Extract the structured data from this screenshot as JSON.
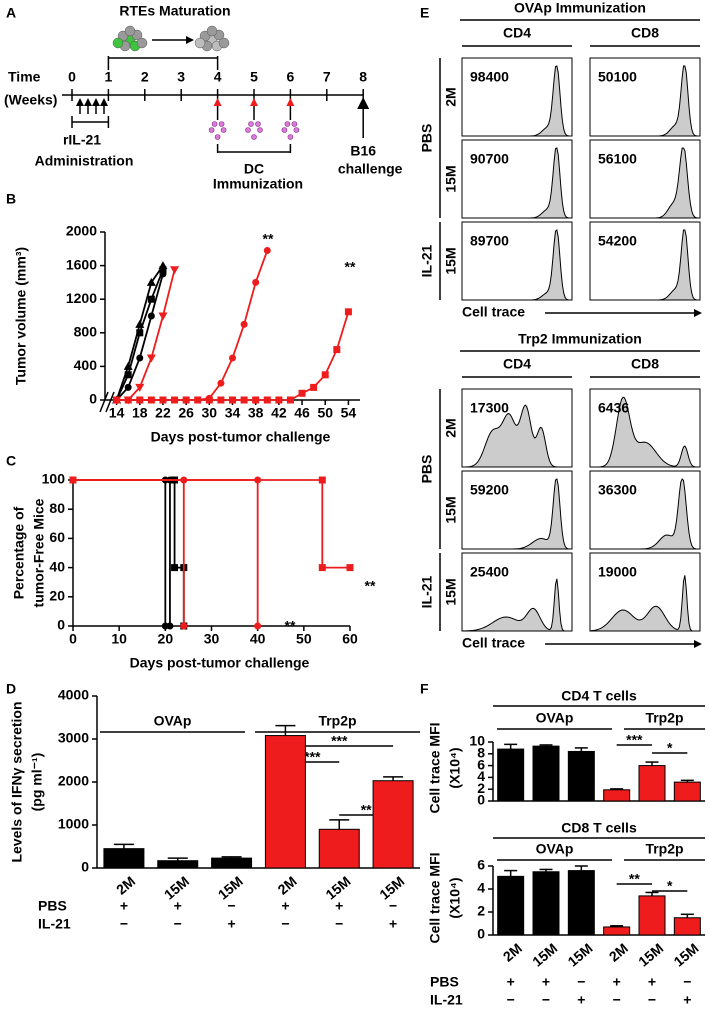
{
  "panel_labels": [
    "A",
    "B",
    "C",
    "D",
    "E",
    "F"
  ],
  "timeline": {
    "title": "RTEs Maturation",
    "axis_label": "Time",
    "axis_unit": "(Weeks)",
    "weeks": [
      0,
      1,
      2,
      3,
      4,
      5,
      6,
      7,
      8
    ],
    "administration": [
      "rIL-21",
      "Administration"
    ],
    "immunization": [
      "DC",
      "Immunization"
    ],
    "challenge": [
      "B16",
      "challenge"
    ]
  },
  "chart_data": [
    {
      "type": "line",
      "ylabel": "Tumor volume (mm³)",
      "xlabel": "Days post-tumor challenge",
      "xlim": [
        12,
        56
      ],
      "xticks": [
        14,
        18,
        22,
        26,
        30,
        34,
        38,
        42,
        46,
        50,
        54
      ],
      "ylim": [
        0,
        2000
      ],
      "yticks": [
        0,
        400,
        800,
        1200,
        1600,
        2000
      ],
      "series": [
        {
          "color": "#000000",
          "marker": "square",
          "x": [
            14,
            16,
            18,
            20,
            22
          ],
          "values": [
            0,
            300,
            800,
            1200,
            1550
          ]
        },
        {
          "color": "#000000",
          "marker": "circle",
          "x": [
            14,
            16,
            18,
            20,
            22
          ],
          "values": [
            0,
            150,
            500,
            1000,
            1500
          ]
        },
        {
          "color": "#000000",
          "marker": "triangle",
          "x": [
            14,
            16,
            18,
            20,
            22
          ],
          "values": [
            0,
            400,
            900,
            1400,
            1600
          ]
        },
        {
          "color": "#ee1c1c",
          "marker": "triangle-down",
          "x": [
            14,
            16,
            18,
            20,
            22,
            24
          ],
          "values": [
            0,
            0,
            150,
            500,
            1000,
            1550
          ]
        },
        {
          "color": "#ee1c1c",
          "marker": "circle",
          "x": [
            14,
            16,
            18,
            20,
            22,
            24,
            26,
            28,
            30,
            32,
            34,
            36,
            38,
            40
          ],
          "values": [
            0,
            0,
            0,
            0,
            0,
            0,
            0,
            0,
            20,
            200,
            500,
            900,
            1400,
            1780
          ]
        },
        {
          "color": "#ee1c1c",
          "marker": "square",
          "x": [
            14,
            16,
            18,
            20,
            22,
            24,
            26,
            28,
            30,
            32,
            34,
            36,
            38,
            40,
            42,
            44,
            46,
            48,
            50,
            52,
            54
          ],
          "values": [
            0,
            0,
            0,
            0,
            0,
            0,
            0,
            0,
            0,
            0,
            0,
            0,
            0,
            0,
            0,
            0,
            80,
            150,
            300,
            600,
            1050
          ]
        }
      ],
      "annotations": [
        "**",
        "**"
      ]
    },
    {
      "type": "line",
      "ylabel": [
        "Percentage of",
        "tumor-Free Mice"
      ],
      "xlabel": "Days post-tumor challenge",
      "xlim": [
        0,
        60
      ],
      "xticks": [
        0,
        10,
        20,
        30,
        40,
        50,
        60
      ],
      "ylim": [
        0,
        100
      ],
      "yticks": [
        0,
        20,
        40,
        60,
        80,
        100
      ],
      "series": [
        {
          "color": "#000000",
          "marker": "circle",
          "x": [
            0,
            20,
            20
          ],
          "values": [
            100,
            100,
            0
          ]
        },
        {
          "color": "#000000",
          "marker": "circle",
          "x": [
            0,
            21,
            21
          ],
          "values": [
            100,
            100,
            0
          ]
        },
        {
          "color": "#000000",
          "marker": "square",
          "x": [
            0,
            22,
            22,
            24,
            24
          ],
          "values": [
            100,
            100,
            40,
            40,
            0
          ]
        },
        {
          "color": "#ee1c1c",
          "marker": "circle",
          "x": [
            0,
            24,
            24
          ],
          "values": [
            100,
            100,
            0
          ]
        },
        {
          "color": "#ee1c1c",
          "marker": "circle",
          "x": [
            0,
            40,
            40
          ],
          "values": [
            100,
            100,
            0
          ]
        },
        {
          "color": "#ee1c1c",
          "marker": "square",
          "x": [
            0,
            54,
            54,
            60
          ],
          "values": [
            100,
            100,
            40,
            40
          ]
        }
      ],
      "annotations": [
        "**",
        "**"
      ]
    },
    {
      "type": "bar",
      "ylabel": [
        "Levels of IFNγ secretion",
        "(pg ml⁻¹)"
      ],
      "ylim": [
        0,
        4000
      ],
      "yticks": [
        0,
        1000,
        2000,
        3000,
        4000
      ],
      "categories": [
        "2M",
        "15M",
        "15M",
        "2M",
        "15M",
        "15M"
      ],
      "values": [
        450,
        170,
        230,
        3080,
        900,
        2030
      ],
      "errors": [
        100,
        60,
        30,
        230,
        220,
        90
      ],
      "colors": [
        "#000000",
        "#000000",
        "#000000",
        "#ee1c1c",
        "#ee1c1c",
        "#ee1c1c"
      ],
      "groups": [
        "OVAp",
        "Trp2p"
      ],
      "significance": [
        "***",
        "***",
        "**"
      ],
      "treatments": [
        {
          "label": "PBS",
          "signs": [
            "+",
            "+",
            "−",
            "+",
            "+",
            "−"
          ]
        },
        {
          "label": "IL-21",
          "signs": [
            "−",
            "−",
            "+",
            "−",
            "−",
            "+"
          ]
        }
      ]
    },
    {
      "type": "bar",
      "title": "CD4 T cells",
      "ylabel": [
        "Cell  trace MFI",
        "(X10⁴)"
      ],
      "ylim": [
        0,
        10
      ],
      "yticks": [
        0,
        2,
        4,
        6,
        8,
        10
      ],
      "values": [
        8.8,
        9.3,
        8.4,
        1.9,
        6.0,
        3.2
      ],
      "errors": [
        0.8,
        0.2,
        0.6,
        0.15,
        0.6,
        0.3
      ],
      "colors": [
        "#000000",
        "#000000",
        "#000000",
        "#ee1c1c",
        "#ee1c1c",
        "#ee1c1c"
      ],
      "groups": [
        "OVAp",
        "Trp2p"
      ],
      "significance": [
        "***",
        "*"
      ]
    },
    {
      "type": "bar",
      "title": "CD8 T cells",
      "ylabel": [
        "Cell trace MFI",
        "(X10⁴)"
      ],
      "ylim": [
        0,
        6
      ],
      "yticks": [
        0,
        2,
        4,
        6
      ],
      "categories": [
        "2M",
        "15M",
        "15M",
        "2M",
        "15M",
        "15M"
      ],
      "values": [
        5.1,
        5.5,
        5.6,
        0.7,
        3.4,
        1.5
      ],
      "errors": [
        0.5,
        0.2,
        0.4,
        0.1,
        0.3,
        0.3
      ],
      "colors": [
        "#000000",
        "#000000",
        "#000000",
        "#ee1c1c",
        "#ee1c1c",
        "#ee1c1c"
      ],
      "groups": [
        "OVAp",
        "Trp2p"
      ],
      "significance": [
        "**",
        "*"
      ],
      "treatments": [
        {
          "label": "PBS",
          "signs": [
            "+",
            "+",
            "−",
            "+",
            "+",
            "−"
          ]
        },
        {
          "label": "IL-21",
          "signs": [
            "−",
            "−",
            "+",
            "−",
            "−",
            "+"
          ]
        }
      ]
    }
  ],
  "flow": [
    {
      "title": "OVAp Immunization",
      "columns": [
        "CD4",
        "CD8"
      ],
      "groups": [
        "PBS",
        "IL-21"
      ],
      "rows": [
        "2M",
        "15M",
        "15M"
      ],
      "values": [
        [
          98400,
          50100
        ],
        [
          90700,
          56100
        ],
        [
          89700,
          54200
        ]
      ],
      "xlabel": "Cell trace"
    },
    {
      "title": "Trp2 Immunization",
      "columns": [
        "CD4",
        "CD8"
      ],
      "groups": [
        "PBS",
        "IL-21"
      ],
      "rows": [
        "2M",
        "15M",
        "15M"
      ],
      "values": [
        [
          17300,
          6436
        ],
        [
          59200,
          36300
        ],
        [
          25400,
          19000
        ]
      ],
      "xlabel": "Cell trace"
    }
  ]
}
